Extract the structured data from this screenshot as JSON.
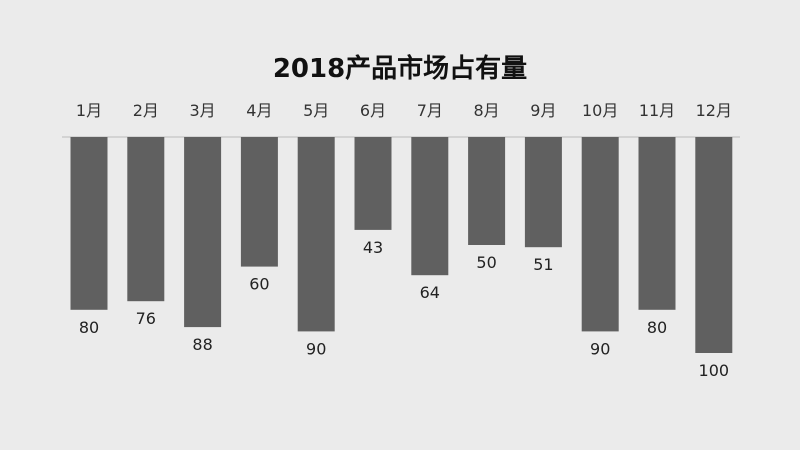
{
  "chart_data": {
    "type": "bar",
    "orientation": "vertical-downward",
    "title": "2018产品市场占有量",
    "xlabel": "",
    "ylabel": "",
    "categories": [
      "1月",
      "2月",
      "3月",
      "4月",
      "5月",
      "6月",
      "7月",
      "8月",
      "9月",
      "10月",
      "11月",
      "12月"
    ],
    "values": [
      80,
      76,
      88,
      60,
      90,
      43,
      64,
      50,
      51,
      90,
      80,
      100
    ],
    "ylim": [
      0,
      100
    ],
    "grid": false,
    "legend": "none",
    "data_labels": true,
    "colors": {
      "background": "#ebebeb",
      "bar": "#606060",
      "baseline": "#bbbbbb",
      "title": "#111111",
      "text": "#333333"
    }
  }
}
